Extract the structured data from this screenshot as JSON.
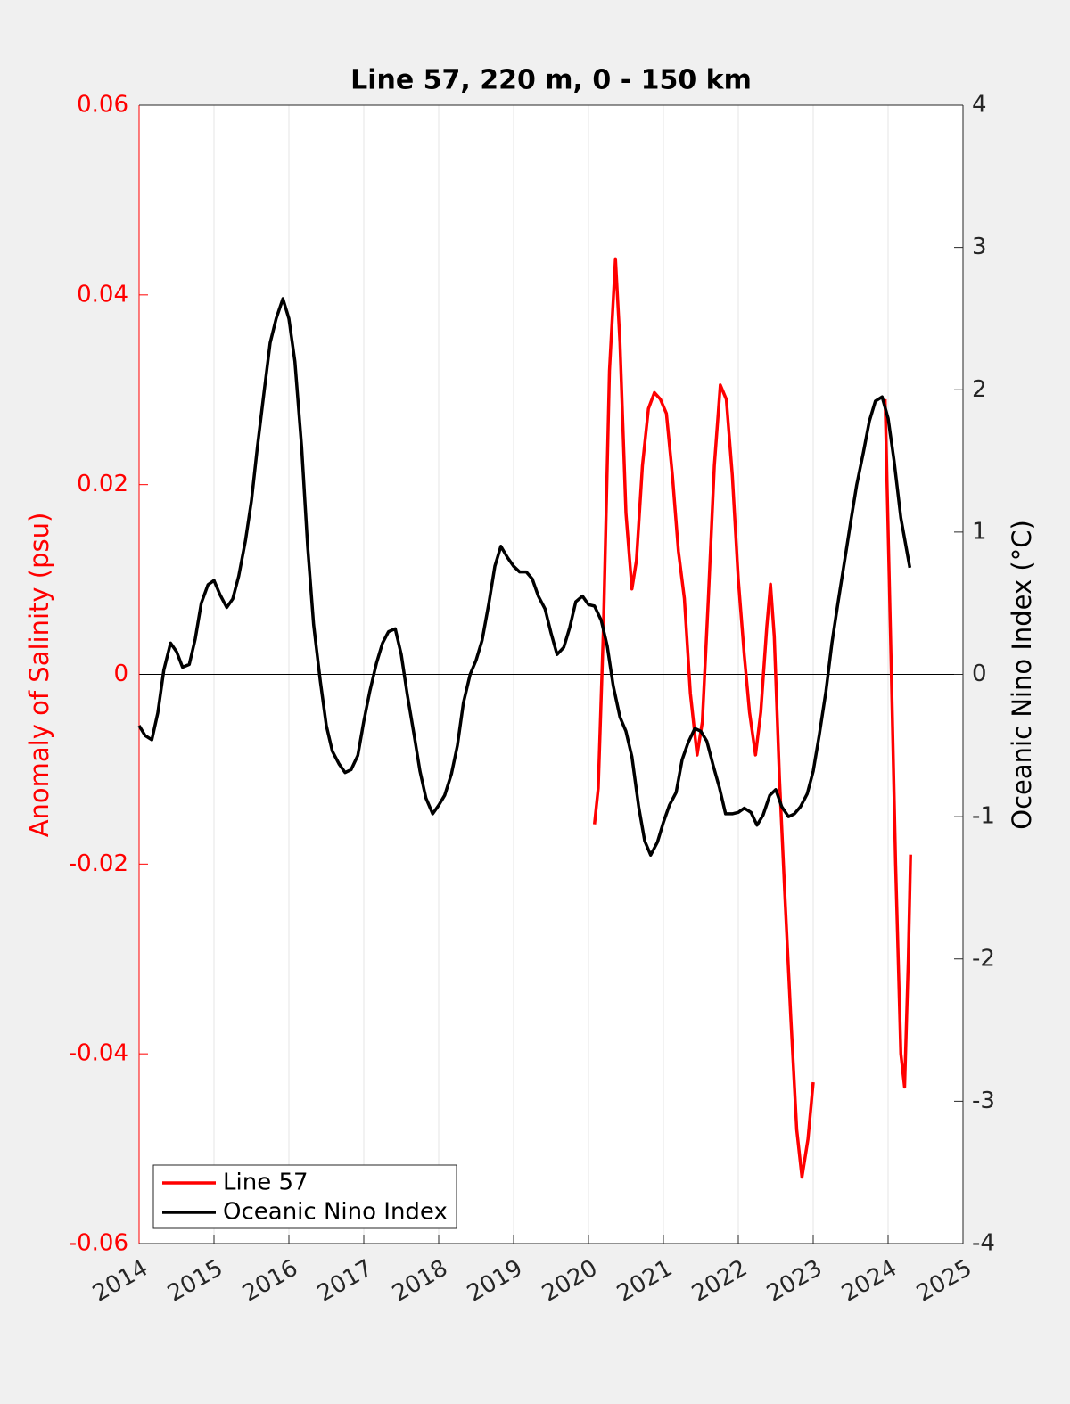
{
  "chart_data": {
    "type": "line",
    "title": "Line 57, 220 m, 0 - 150 km",
    "y_label": "Anomaly of Salinity (psu)",
    "y2_label": "Oceanic Nino Index (°C)",
    "xlim": [
      2014,
      2025
    ],
    "xticks": [
      2014,
      2015,
      2016,
      2017,
      2018,
      2019,
      2020,
      2021,
      2022,
      2023,
      2024,
      2025
    ],
    "ylim": [
      -0.06,
      0.06
    ],
    "yticks": [
      -0.06,
      -0.04,
      -0.02,
      0,
      0.02,
      0.04,
      0.06
    ],
    "y2lim": [
      -4,
      4
    ],
    "y2ticks": [
      -4,
      -3,
      -2,
      -1,
      0,
      1,
      2,
      3,
      4
    ],
    "grid": true,
    "legend": "lower-left",
    "series": [
      {
        "name": "Line 57",
        "color": "#ff0000",
        "axis": "y",
        "x": [
          2020.08,
          2020.13,
          2020.2,
          2020.28,
          2020.36,
          2020.42,
          2020.5,
          2020.58,
          2020.64,
          2020.72,
          2020.8,
          2020.88,
          2020.96,
          2021.04,
          2021.12,
          2021.2,
          2021.28,
          2021.36,
          2021.45,
          2021.52,
          2021.6,
          2021.68,
          2021.76,
          2021.84,
          2021.92,
          2022.0,
          2022.08,
          2022.15,
          2022.23,
          2022.3,
          2022.38,
          2022.43,
          2022.48,
          2022.55,
          2022.62,
          2022.7,
          2022.78,
          2022.85,
          2022.93,
          2023.0,
          2023.5,
          2023.96,
          2024.03,
          2024.1,
          2024.17,
          2024.22,
          2024.27,
          2024.3
        ],
        "values": [
          -0.0158,
          -0.012,
          0.005,
          0.032,
          0.0438,
          0.035,
          0.017,
          0.009,
          0.012,
          0.022,
          0.028,
          0.0297,
          0.029,
          0.0275,
          0.021,
          0.013,
          0.008,
          -0.002,
          -0.0085,
          -0.005,
          0.008,
          0.022,
          0.0305,
          0.029,
          0.021,
          0.01,
          0.002,
          -0.004,
          -0.0085,
          -0.004,
          0.005,
          0.0095,
          0.004,
          -0.011,
          -0.023,
          -0.036,
          -0.048,
          -0.053,
          -0.049,
          -0.043,
          null,
          0.029,
          0.005,
          -0.02,
          -0.04,
          -0.0435,
          -0.03,
          -0.019
        ]
      },
      {
        "name": "Oceanic Nino Index",
        "color": "#000000",
        "axis": "y2",
        "x": [
          2014.0,
          2014.08,
          2014.17,
          2014.25,
          2014.33,
          2014.42,
          2014.5,
          2014.58,
          2014.67,
          2014.75,
          2014.83,
          2014.92,
          2015.0,
          2015.08,
          2015.17,
          2015.25,
          2015.33,
          2015.42,
          2015.5,
          2015.58,
          2015.67,
          2015.75,
          2015.83,
          2015.92,
          2016.0,
          2016.08,
          2016.17,
          2016.25,
          2016.33,
          2016.42,
          2016.5,
          2016.58,
          2016.67,
          2016.75,
          2016.83,
          2016.92,
          2017.0,
          2017.08,
          2017.17,
          2017.25,
          2017.33,
          2017.42,
          2017.5,
          2017.58,
          2017.67,
          2017.75,
          2017.83,
          2017.92,
          2018.0,
          2018.08,
          2018.17,
          2018.25,
          2018.33,
          2018.42,
          2018.5,
          2018.58,
          2018.67,
          2018.75,
          2018.83,
          2018.92,
          2019.0,
          2019.08,
          2019.17,
          2019.25,
          2019.33,
          2019.42,
          2019.5,
          2019.58,
          2019.67,
          2019.75,
          2019.83,
          2019.92,
          2020.0,
          2020.08,
          2020.17,
          2020.25,
          2020.33,
          2020.42,
          2020.5,
          2020.58,
          2020.67,
          2020.75,
          2020.83,
          2020.92,
          2021.0,
          2021.08,
          2021.17,
          2021.25,
          2021.33,
          2021.42,
          2021.5,
          2021.58,
          2021.67,
          2021.75,
          2021.83,
          2021.92,
          2022.0,
          2022.08,
          2022.17,
          2022.25,
          2022.33,
          2022.42,
          2022.5,
          2022.58,
          2022.67,
          2022.75,
          2022.83,
          2022.92,
          2023.0,
          2023.08,
          2023.17,
          2023.25,
          2023.33,
          2023.42,
          2023.5,
          2023.58,
          2023.67,
          2023.75,
          2023.83,
          2023.92,
          2024.0,
          2024.08,
          2024.17,
          2024.29
        ],
        "values": [
          -0.36,
          -0.43,
          -0.46,
          -0.27,
          0.03,
          0.22,
          0.16,
          0.05,
          0.07,
          0.25,
          0.5,
          0.63,
          0.66,
          0.56,
          0.47,
          0.53,
          0.69,
          0.94,
          1.22,
          1.6,
          1.99,
          2.33,
          2.5,
          2.64,
          2.5,
          2.2,
          1.6,
          0.9,
          0.35,
          -0.05,
          -0.36,
          -0.54,
          -0.63,
          -0.69,
          -0.67,
          -0.57,
          -0.33,
          -0.12,
          0.08,
          0.22,
          0.3,
          0.32,
          0.14,
          -0.14,
          -0.42,
          -0.68,
          -0.87,
          -0.98,
          -0.92,
          -0.85,
          -0.7,
          -0.5,
          -0.2,
          0.0,
          0.1,
          0.24,
          0.5,
          0.76,
          0.9,
          0.82,
          0.76,
          0.72,
          0.72,
          0.67,
          0.55,
          0.46,
          0.29,
          0.14,
          0.19,
          0.33,
          0.51,
          0.55,
          0.49,
          0.48,
          0.38,
          0.2,
          -0.08,
          -0.3,
          -0.4,
          -0.58,
          -0.93,
          -1.17,
          -1.27,
          -1.18,
          -1.04,
          -0.92,
          -0.83,
          -0.6,
          -0.48,
          -0.38,
          -0.4,
          -0.47,
          -0.65,
          -0.8,
          -0.98,
          -0.98,
          -0.97,
          -0.94,
          -0.97,
          -1.06,
          -0.99,
          -0.85,
          -0.81,
          -0.93,
          -1.0,
          -0.98,
          -0.93,
          -0.84,
          -0.68,
          -0.43,
          -0.12,
          0.22,
          0.5,
          0.8,
          1.07,
          1.33,
          1.56,
          1.78,
          1.92,
          1.95,
          1.8,
          1.5,
          1.1,
          0.75
        ]
      }
    ]
  }
}
